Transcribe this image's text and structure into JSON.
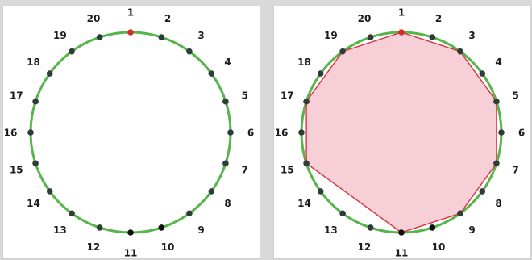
{
  "colors": {
    "circle": "#56b64a",
    "polygon_stroke": "#d93344",
    "polygon_fill": "#f7cfd6",
    "point": "#2f3b3b",
    "point_start": "#d52b2b",
    "point_special": "#0f0f0f",
    "label": "#1c1c1c"
  },
  "panels": [
    {
      "name": "circle-points",
      "polygon": [],
      "points": [
        {
          "label": "1",
          "angle": 90,
          "style": "start"
        },
        {
          "label": "2",
          "angle": 72,
          "style": "normal"
        },
        {
          "label": "3",
          "angle": 54,
          "style": "normal"
        },
        {
          "label": "4",
          "angle": 36,
          "style": "normal"
        },
        {
          "label": "5",
          "angle": 18,
          "style": "normal"
        },
        {
          "label": "6",
          "angle": 0,
          "style": "normal"
        },
        {
          "label": "7",
          "angle": -18,
          "style": "normal"
        },
        {
          "label": "8",
          "angle": -36,
          "style": "normal"
        },
        {
          "label": "9",
          "angle": -54,
          "style": "normal"
        },
        {
          "label": "10",
          "angle": -72,
          "style": "special"
        },
        {
          "label": "11",
          "angle": -90,
          "style": "special"
        },
        {
          "label": "12",
          "angle": -108,
          "style": "normal"
        },
        {
          "label": "13",
          "angle": -126,
          "style": "normal"
        },
        {
          "label": "14",
          "angle": -144,
          "style": "normal"
        },
        {
          "label": "15",
          "angle": -162,
          "style": "normal"
        },
        {
          "label": "16",
          "angle": 180,
          "style": "normal"
        },
        {
          "label": "17",
          "angle": 162,
          "style": "normal"
        },
        {
          "label": "18",
          "angle": 144,
          "style": "normal"
        },
        {
          "label": "19",
          "angle": 126,
          "style": "normal"
        },
        {
          "label": "20",
          "angle": 108,
          "style": "normal"
        }
      ]
    },
    {
      "name": "circle-polygon",
      "polygon": [
        "1",
        "3",
        "5",
        "7",
        "9",
        "11",
        "15",
        "17",
        "19"
      ],
      "points": [
        {
          "label": "1",
          "angle": 90,
          "style": "start"
        },
        {
          "label": "2",
          "angle": 72,
          "style": "normal"
        },
        {
          "label": "3",
          "angle": 54,
          "style": "normal"
        },
        {
          "label": "4",
          "angle": 36,
          "style": "normal"
        },
        {
          "label": "5",
          "angle": 18,
          "style": "normal"
        },
        {
          "label": "6",
          "angle": 0,
          "style": "normal"
        },
        {
          "label": "7",
          "angle": -18,
          "style": "normal"
        },
        {
          "label": "8",
          "angle": -36,
          "style": "normal"
        },
        {
          "label": "9",
          "angle": -54,
          "style": "normal"
        },
        {
          "label": "10",
          "angle": -72,
          "style": "special"
        },
        {
          "label": "11",
          "angle": -90,
          "style": "special"
        },
        {
          "label": "12",
          "angle": -108,
          "style": "normal"
        },
        {
          "label": "13",
          "angle": -126,
          "style": "normal"
        },
        {
          "label": "14",
          "angle": -144,
          "style": "normal"
        },
        {
          "label": "15",
          "angle": -162,
          "style": "normal"
        },
        {
          "label": "16",
          "angle": 180,
          "style": "normal"
        },
        {
          "label": "17",
          "angle": 162,
          "style": "normal"
        },
        {
          "label": "18",
          "angle": 144,
          "style": "normal"
        },
        {
          "label": "19",
          "angle": 126,
          "style": "normal"
        },
        {
          "label": "20",
          "angle": 108,
          "style": "normal"
        }
      ]
    }
  ]
}
